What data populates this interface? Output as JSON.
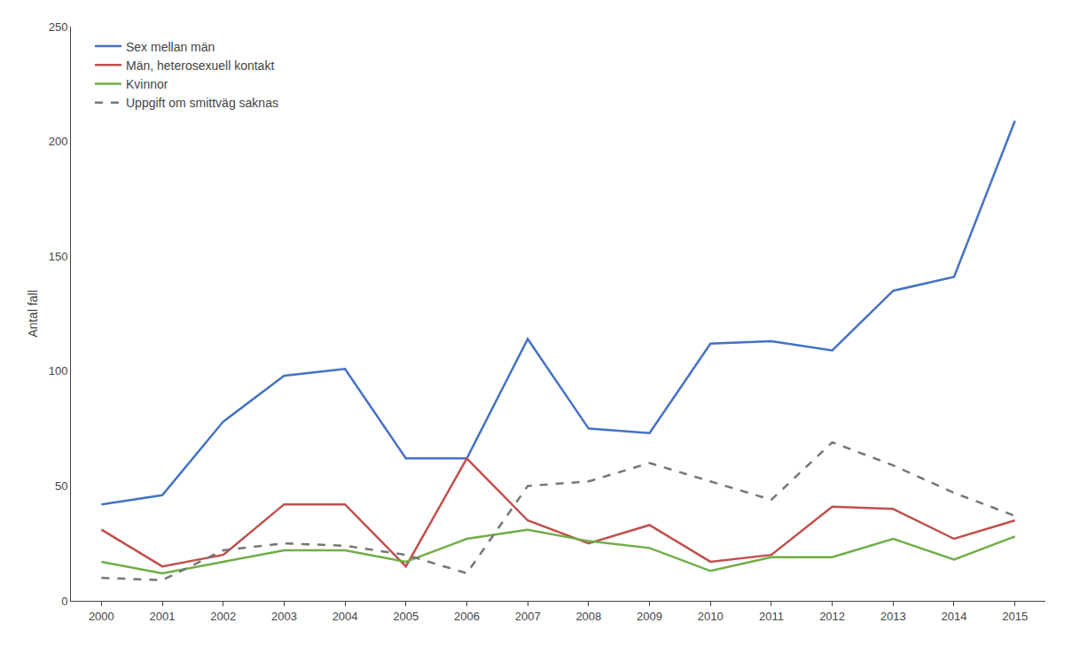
{
  "chart_data": {
    "type": "line",
    "ylabel": "Antal fall",
    "x": [
      2000,
      2001,
      2002,
      2003,
      2004,
      2005,
      2006,
      2007,
      2008,
      2009,
      2010,
      2011,
      2012,
      2013,
      2014,
      2015
    ],
    "series": [
      {
        "name": "Sex mellan män",
        "color": "#4472C4",
        "line_style": "solid",
        "values": [
          42,
          46,
          78,
          98,
          101,
          62,
          62,
          114,
          75,
          73,
          112,
          113,
          109,
          135,
          141,
          209
        ]
      },
      {
        "name": "Män, heterosexuell kontakt",
        "color": "#C0504D",
        "line_style": "solid",
        "values": [
          31,
          15,
          20,
          42,
          42,
          15,
          62,
          35,
          25,
          33,
          17,
          20,
          41,
          40,
          27,
          35
        ]
      },
      {
        "name": "Kvinnor",
        "color": "#70AD47",
        "line_style": "solid",
        "values": [
          17,
          12,
          17,
          22,
          22,
          17,
          27,
          31,
          26,
          23,
          13,
          19,
          19,
          27,
          18,
          28
        ]
      },
      {
        "name": "Uppgift om smittväg saknas",
        "color": "#767676",
        "line_style": "dashed",
        "values": [
          10,
          9,
          22,
          25,
          24,
          20,
          12,
          50,
          52,
          60,
          52,
          44,
          69,
          59,
          47,
          37
        ]
      }
    ],
    "xlim": [
      1999.5,
      2015.5
    ],
    "xticks": [
      2000,
      2001,
      2002,
      2003,
      2004,
      2005,
      2006,
      2007,
      2008,
      2009,
      2010,
      2011,
      2012,
      2013,
      2014,
      2015
    ],
    "ylim": [
      0,
      250
    ],
    "yticks": [
      0,
      50,
      100,
      150,
      200,
      250
    ],
    "grid": false,
    "legend": "upper left"
  }
}
